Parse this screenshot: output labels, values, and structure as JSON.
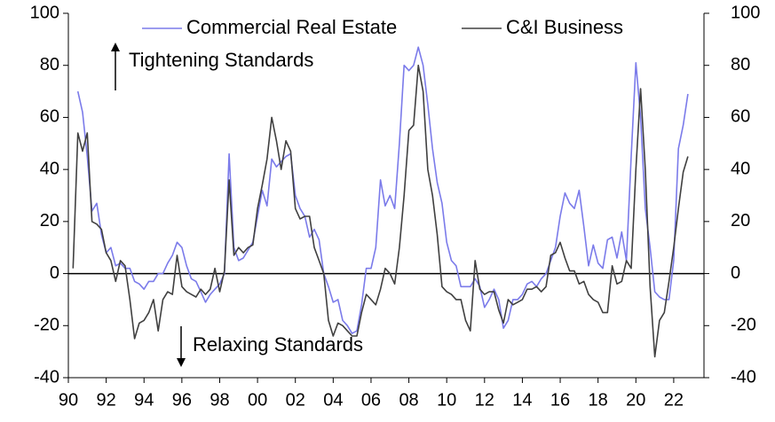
{
  "chart_data": {
    "type": "line",
    "x": [
      1990.25,
      1990.5,
      1990.75,
      1991,
      1991.25,
      1991.5,
      1991.75,
      1992,
      1992.25,
      1992.5,
      1992.75,
      1993,
      1993.25,
      1993.5,
      1993.75,
      1994,
      1994.25,
      1994.5,
      1994.75,
      1995,
      1995.25,
      1995.5,
      1995.75,
      1996,
      1996.25,
      1996.5,
      1996.75,
      1997,
      1997.25,
      1997.5,
      1997.75,
      1998,
      1998.25,
      1998.5,
      1998.75,
      1999,
      1999.25,
      1999.5,
      1999.75,
      2000,
      2000.25,
      2000.5,
      2000.75,
      2001,
      2001.25,
      2001.5,
      2001.75,
      2002,
      2002.25,
      2002.5,
      2002.75,
      2003,
      2003.25,
      2003.5,
      2003.75,
      2004,
      2004.25,
      2004.5,
      2004.75,
      2005,
      2005.25,
      2005.5,
      2005.75,
      2006,
      2006.25,
      2006.5,
      2006.75,
      2007,
      2007.25,
      2007.5,
      2007.75,
      2008,
      2008.25,
      2008.5,
      2008.75,
      2009,
      2009.25,
      2009.5,
      2009.75,
      2010,
      2010.25,
      2010.5,
      2010.75,
      2011,
      2011.25,
      2011.5,
      2011.75,
      2012,
      2012.25,
      2012.5,
      2012.75,
      2013,
      2013.25,
      2013.5,
      2013.75,
      2014,
      2014.25,
      2014.5,
      2014.75,
      2015,
      2015.25,
      2015.5,
      2015.75,
      2016,
      2016.25,
      2016.5,
      2016.75,
      2017,
      2017.25,
      2017.5,
      2017.75,
      2018,
      2018.25,
      2018.5,
      2018.75,
      2019,
      2019.25,
      2019.5,
      2019.75,
      2020,
      2020.25,
      2020.5,
      2020.75,
      2021,
      2021.25,
      2021.5,
      2021.75,
      2022,
      2022.25,
      2022.5,
      2022.75
    ],
    "series": [
      {
        "name": "Commercial Real Estate",
        "color": "#7b7bea",
        "axis": "y",
        "values": [
          null,
          70,
          62,
          45,
          24,
          27,
          15,
          8,
          10,
          3,
          4,
          2,
          2,
          -3,
          -4,
          -6,
          -3,
          -3,
          0,
          0,
          4,
          7,
          12,
          10,
          3,
          -2,
          -3,
          -7,
          -11,
          -8,
          -6,
          -4,
          0,
          46,
          10,
          5,
          6,
          9,
          12,
          22,
          32,
          26,
          44,
          41,
          43,
          45,
          46,
          30,
          25,
          22,
          14,
          17,
          13,
          0,
          -5,
          -11,
          -10,
          -18,
          -20,
          -23,
          -22,
          -12,
          2,
          2,
          10,
          36,
          26,
          30,
          25,
          50,
          80,
          78,
          80,
          87,
          80,
          65,
          48,
          35,
          27,
          12,
          5,
          3,
          -5,
          -5,
          -5,
          -2,
          -5,
          -13,
          -10,
          -6,
          -10,
          -21,
          -18,
          -10,
          -10,
          -8,
          -4,
          -3,
          -5,
          -2,
          0,
          5,
          10,
          22,
          31,
          27,
          25,
          32,
          18,
          3,
          11,
          4,
          2,
          13,
          14,
          6,
          16,
          5,
          45,
          81,
          60,
          25,
          10,
          -7,
          -9,
          -10,
          -10,
          5,
          48,
          57,
          69
        ]
      },
      {
        "name": "C&I Business",
        "color": "#404040",
        "axis": "y2",
        "values": [
          2,
          54,
          47,
          54,
          20,
          19,
          17,
          8,
          5,
          -3,
          5,
          3,
          -10,
          -25,
          -19,
          -18,
          -15,
          -10,
          -22,
          -10,
          -7,
          -8,
          7,
          -5,
          -7,
          -8,
          -9,
          -6,
          -8,
          -6,
          2,
          -7,
          1,
          36,
          7,
          10,
          8,
          10,
          11,
          25,
          34,
          44,
          60,
          51,
          40,
          51,
          47,
          25,
          21,
          22,
          22,
          10,
          5,
          0,
          -18,
          -24,
          -19,
          -20,
          -22,
          -24,
          -24,
          -15,
          -8,
          -10,
          -12,
          -6,
          2,
          0,
          -4,
          10,
          30,
          55,
          57,
          80,
          70,
          40,
          30,
          15,
          -5,
          -7,
          -8,
          -10,
          -10,
          -18,
          -22,
          5,
          -6,
          -8,
          -7,
          -7,
          -14,
          -19,
          -10,
          -12,
          -11,
          -10,
          -6,
          -6,
          -5,
          -7,
          -5,
          7,
          8,
          12,
          6,
          1,
          1,
          -4,
          -3,
          -8,
          -10,
          -11,
          -15,
          -15,
          3,
          -4,
          -3,
          5,
          2,
          40,
          71,
          40,
          -5,
          -32,
          -18,
          -15,
          -3,
          10,
          25,
          39,
          45
        ]
      }
    ],
    "xlim": [
      1990,
      2023.6
    ],
    "xticks": [
      {
        "value": 1990,
        "label": "90"
      },
      {
        "value": 1992,
        "label": "92"
      },
      {
        "value": 1994,
        "label": "94"
      },
      {
        "value": 1996,
        "label": "96"
      },
      {
        "value": 1998,
        "label": "98"
      },
      {
        "value": 2000,
        "label": "00"
      },
      {
        "value": 2002,
        "label": "02"
      },
      {
        "value": 2004,
        "label": "04"
      },
      {
        "value": 2006,
        "label": "06"
      },
      {
        "value": 2008,
        "label": "08"
      },
      {
        "value": 2010,
        "label": "10"
      },
      {
        "value": 2012,
        "label": "12"
      },
      {
        "value": 2014,
        "label": "14"
      },
      {
        "value": 2016,
        "label": "16"
      },
      {
        "value": 2018,
        "label": "18"
      },
      {
        "value": 2020,
        "label": "20"
      },
      {
        "value": 2022,
        "label": "22"
      }
    ],
    "ylim": [
      -40,
      100
    ],
    "yticks": [
      -40,
      -20,
      0,
      20,
      40,
      60,
      80,
      100
    ],
    "y2lim": [
      -40,
      100
    ],
    "y2ticks": [
      -40,
      -20,
      0,
      20,
      40,
      60,
      80,
      100
    ],
    "annotations": [
      "Tightening Standards",
      "Relaxing Standards"
    ],
    "legend": "top"
  }
}
